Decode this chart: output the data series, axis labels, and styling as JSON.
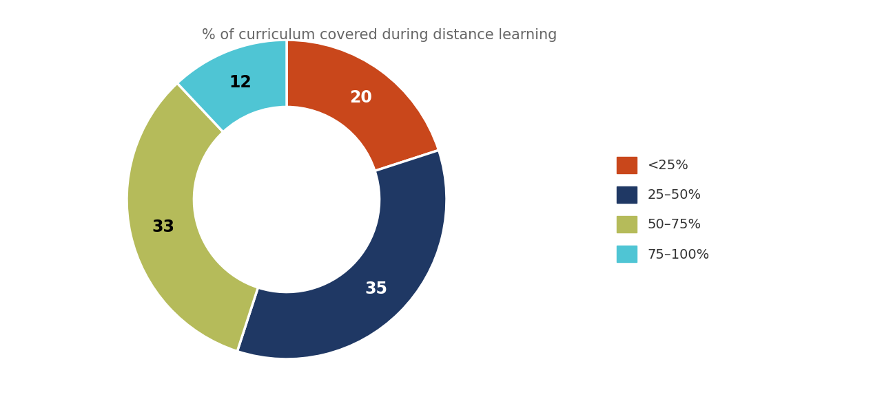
{
  "title": "% of curriculum covered during distance learning",
  "values": [
    20,
    35,
    33,
    12
  ],
  "labels": [
    "<25%",
    "25–50%",
    "50–75%",
    "75–100%"
  ],
  "colors": [
    "#C9471B",
    "#1F3864",
    "#B5BB5A",
    "#4FC5D4"
  ],
  "text_labels": [
    "20",
    "35",
    "33",
    "12"
  ],
  "text_colors": [
    "white",
    "white",
    "black",
    "black"
  ],
  "title_fontsize": 15,
  "label_fontsize": 17,
  "legend_fontsize": 14,
  "donut_width": 0.42,
  "start_angle": 90
}
